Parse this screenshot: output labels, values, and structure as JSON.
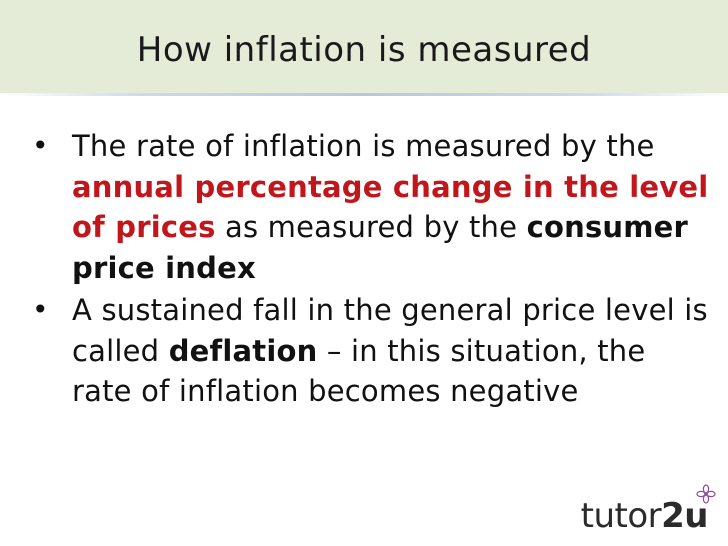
{
  "slide": {
    "title": "How inflation is measured"
  },
  "bullets": [
    {
      "marker": "•",
      "segments": [
        {
          "text": "The rate of inflation is measured by the ",
          "style": "normal"
        },
        {
          "text": "annual percentage change in the level of prices",
          "style": "red"
        },
        {
          "text": " as measured by the ",
          "style": "normal"
        },
        {
          "text": "consumer price index",
          "style": "bold"
        }
      ]
    },
    {
      "marker": "•",
      "segments": [
        {
          "text": "A sustained fall in the general price level is called ",
          "style": "normal"
        },
        {
          "text": "deflation",
          "style": "bold"
        },
        {
          "text": " – in this situation, the rate of inflation becomes negative",
          "style": "normal"
        }
      ]
    }
  ],
  "logo": {
    "prefix": "tutor",
    "suffix": "2u",
    "accent_color": "#8e4a9b"
  },
  "colors": {
    "title_background": "#e4ecd7",
    "emphasis_red": "#c0161c"
  }
}
